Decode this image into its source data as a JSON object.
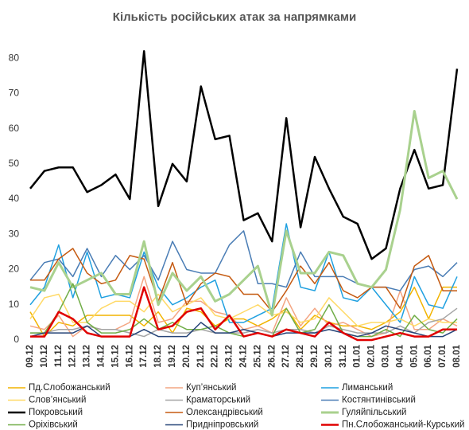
{
  "chart_data": {
    "type": "line",
    "title": "Кількість російських атак за напрямками",
    "categories": [
      "09.12",
      "10.12",
      "11.12",
      "12.12",
      "13.12",
      "14.12",
      "15.12",
      "16.12",
      "17.12",
      "18.12",
      "19.12",
      "20.12",
      "21.12",
      "22.12",
      "23.12",
      "24.12",
      "25.12",
      "26.12",
      "27.12",
      "28.12",
      "29.12",
      "30.12",
      "31.12",
      "01.01",
      "02.01",
      "03.01",
      "04.01",
      "05.01",
      "06.01",
      "07.01",
      "08.01"
    ],
    "ylim": [
      0,
      85
    ],
    "yticks": [
      0,
      10,
      20,
      30,
      40,
      50,
      60,
      70,
      80
    ],
    "grid": false,
    "series": [
      {
        "name": "Пд.Слобожанський",
        "color": "#f2b400",
        "width": 1.5,
        "values": [
          8,
          1,
          5,
          4,
          7,
          7,
          7,
          7,
          4,
          8,
          2,
          9,
          8,
          4,
          6,
          6,
          4,
          6,
          9,
          3,
          7,
          5,
          4,
          4,
          3,
          5,
          8,
          15,
          6,
          15,
          15
        ]
      },
      {
        "name": "Куп’янський",
        "color": "#f4a582",
        "width": 1.5,
        "values": [
          4,
          3,
          7,
          1,
          4,
          3,
          3,
          5,
          18,
          5,
          6,
          11,
          11,
          8,
          7,
          3,
          4,
          2,
          12,
          4,
          9,
          4,
          5,
          3,
          1,
          2,
          14,
          3,
          3,
          6,
          4
        ]
      },
      {
        "name": "Лиманський",
        "color": "#1fa0e0",
        "width": 1.5,
        "values": [
          10,
          15,
          27,
          12,
          25,
          12,
          13,
          12,
          25,
          15,
          10,
          12,
          15,
          17,
          5,
          5,
          7,
          9,
          33,
          15,
          14,
          25,
          12,
          11,
          15,
          10,
          5,
          18,
          10,
          9,
          18
        ]
      },
      {
        "name": "Слов’янський",
        "color": "#ffd966",
        "width": 1.5,
        "values": [
          6,
          12,
          13,
          5,
          5,
          9,
          11,
          11,
          8,
          13,
          8,
          10,
          12,
          7,
          6,
          8,
          10,
          7,
          8,
          5,
          6,
          12,
          8,
          4,
          5,
          5,
          6,
          4,
          6,
          5,
          5
        ]
      },
      {
        "name": "Краматорський",
        "color": "#a5a5a5",
        "width": 1.5,
        "values": [
          2,
          2,
          3,
          3,
          4,
          3,
          3,
          2,
          1,
          3,
          2,
          2,
          3,
          2,
          2,
          2,
          3,
          2,
          3,
          3,
          2,
          4,
          3,
          2,
          2,
          2,
          4,
          2,
          5,
          6,
          9
        ]
      },
      {
        "name": "Костянтинівський",
        "color": "#4a7db5",
        "width": 1.5,
        "values": [
          17,
          22,
          23,
          18,
          26,
          18,
          24,
          20,
          24,
          17,
          28,
          20,
          19,
          19,
          27,
          31,
          16,
          16,
          15,
          25,
          18,
          18,
          18,
          16,
          15,
          15,
          14,
          20,
          21,
          18,
          22
        ]
      },
      {
        "name": "Покровський",
        "color": "#000000",
        "width": 2.5,
        "values": [
          43,
          48,
          49,
          49,
          42,
          44,
          47,
          40,
          82,
          38,
          50,
          45,
          72,
          57,
          58,
          34,
          36,
          28,
          63,
          32,
          52,
          43,
          35,
          33,
          23,
          26,
          43,
          54,
          43,
          44,
          77
        ]
      },
      {
        "name": "Олександрівський",
        "color": "#c55a11",
        "width": 1.5,
        "values": [
          17,
          17,
          23,
          26,
          19,
          16,
          17,
          24,
          23,
          11,
          22,
          10,
          16,
          19,
          18,
          13,
          13,
          8,
          14,
          21,
          16,
          22,
          14,
          12,
          15,
          15,
          9,
          21,
          24,
          14,
          14
        ]
      },
      {
        "name": "Гуляйпільський",
        "color": "#a9d18e",
        "width": 3,
        "values": [
          15,
          14,
          22,
          15,
          17,
          19,
          13,
          13,
          28,
          10,
          19,
          14,
          18,
          11,
          13,
          17,
          21,
          7,
          31,
          19,
          19,
          25,
          24,
          16,
          15,
          20,
          37,
          65,
          46,
          48,
          40
        ]
      },
      {
        "name": "Оріхівський",
        "color": "#70ad47",
        "width": 1.5,
        "values": [
          2,
          2,
          8,
          16,
          5,
          2,
          2,
          3,
          6,
          3,
          5,
          3,
          3,
          4,
          2,
          1,
          2,
          1,
          9,
          2,
          3,
          10,
          2,
          1,
          1,
          3,
          1,
          7,
          3,
          2,
          6
        ]
      },
      {
        "name": "Придніпровський",
        "color": "#264478",
        "width": 1.5,
        "values": [
          1,
          2,
          2,
          2,
          4,
          1,
          1,
          1,
          3,
          1,
          1,
          1,
          5,
          2,
          2,
          3,
          2,
          1,
          2,
          2,
          2,
          3,
          2,
          1,
          2,
          4,
          3,
          2,
          1,
          1,
          3
        ]
      },
      {
        "name": "Пн.Слобожанський-Курський",
        "color": "#e00000",
        "width": 2.5,
        "values": [
          1,
          1,
          8,
          6,
          2,
          1,
          1,
          1,
          15,
          3,
          4,
          8,
          9,
          3,
          7,
          1,
          2,
          1,
          3,
          2,
          1,
          5,
          2,
          0,
          0,
          1,
          2,
          1,
          1,
          3,
          3
        ]
      }
    ]
  }
}
